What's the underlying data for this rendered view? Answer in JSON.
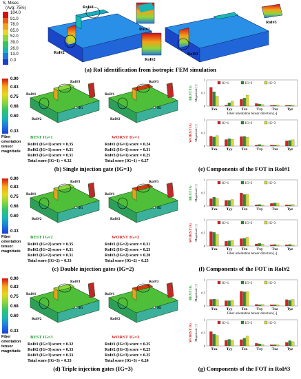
{
  "panel_a": {
    "legend_title": "S, Mises",
    "legend_subtitle": "(Avg: 75%)",
    "legend_values": [
      "104.0",
      "91.0",
      "78.0",
      "65.0",
      "52.0",
      "39.0",
      "26.0",
      "13.0",
      "0.0"
    ],
    "legend_colors": [
      "#d41010",
      "#ef5a10",
      "#f5a21a",
      "#e6d81e",
      "#8fd63a",
      "#33c46a",
      "#19b6b4",
      "#1e7ae0",
      "#1b3fd2"
    ],
    "rois": [
      "RoI#1",
      "RoI#2",
      "RoI#3"
    ],
    "caption": "(a) RoI identification from isotropic FEM simulation"
  },
  "fot_colorbar": {
    "ticks": [
      "0.90",
      "0.83",
      "0.75",
      "0.68",
      "0.60",
      "0.33"
    ],
    "label_lines": [
      "Fiber",
      "orientation",
      "tensor",
      "magnitude"
    ]
  },
  "gate_label": "IG",
  "behind_label_lines": [
    "IG",
    "(behind)"
  ],
  "panels_left": [
    {
      "best_title": "BEST IG=1",
      "worst_title": "WORST IG=1",
      "best_scores": [
        "RoI#1 (IG=1) score = 0.35",
        "RoI#2 (IG=1) score = 0.31",
        "RoI#3 (IG=1) score = 0.31",
        "Total score (IG=1) = 0.32"
      ],
      "worst_scores": [
        "RoI#1 (IG=1) score = 0.24",
        "RoI#2 (IG=1) score = 0.31",
        "RoI#3 (IG=1) score = 0.25",
        "Total score (IG=1) = 0.27"
      ],
      "caption": "(b) Single injection gate (IG=1)"
    },
    {
      "best_title": "BEST IG=2",
      "worst_title": "WORST IG=2",
      "best_scores": [
        "RoI#1 (IG=2) score = 0.35",
        "RoI#2 (IG=2) score = 0.31",
        "RoI#3 (IG=2) score = 0.31",
        "Total score (IG=2) = 0.33"
      ],
      "worst_scores": [
        "RoI#1 (IG=2) score = 0.31",
        "RoI#2 (IG=2) score = 0.23",
        "RoI#3 (IG=2) score = 0.20",
        "Total score (IG=2) = 0.25"
      ],
      "caption": "(c) Double injection gates (IG=2)"
    },
    {
      "best_title": "BEST IG=3",
      "worst_title": "WORST IG=3",
      "best_scores": [
        "RoI#1 (IG=3) score = 0.32",
        "RoI#2 (IG=3) score = 0.33",
        "RoI#3 (IG=3) score = 0.33",
        "Total score (IG=3) = 0.33"
      ],
      "worst_scores": [
        "RoI#1 (IG=3) score = 0.25",
        "RoI#2 (IG=3) score = 0.23",
        "RoI#3 (IG=3) score = 0.25",
        "Total score (IG=3) = 0.24"
      ],
      "caption": "(d) Triple injection gates (IG=3)"
    }
  ],
  "chart_data": [
    {
      "type": "bar",
      "panel": "e",
      "row": "BEST IG",
      "caption": "(e) Components of the FOT in RoI#1",
      "categories": [
        "Txx",
        "Tyy",
        "Tzz",
        "Txy",
        "Txz",
        "Tyz"
      ],
      "ylabel": "Magnitude [-]",
      "xlabel": "Fiber orientation tensor direction [-]",
      "ylim": [
        0,
        1
      ],
      "yticks": [
        "0",
        "0.5",
        "1"
      ],
      "series": [
        {
          "name": "IG=1",
          "values": [
            0.72,
            0.04,
            0.26,
            0.1,
            0.03,
            0.03
          ]
        },
        {
          "name": "IG=2",
          "values": [
            0.55,
            0.13,
            0.31,
            0.08,
            0.04,
            0.04
          ]
        },
        {
          "name": "IG=3",
          "values": [
            0.38,
            0.19,
            0.42,
            0.06,
            0.05,
            0.05
          ]
        }
      ]
    },
    {
      "type": "bar",
      "panel": "e",
      "row": "WORST IG",
      "categories": [
        "Txx",
        "Tyy",
        "Tzz",
        "Txy",
        "Txz",
        "Tyz"
      ],
      "ylabel": "Magnitude [-]",
      "xlabel": "",
      "ylim": [
        0,
        1
      ],
      "yticks": [
        "0",
        "0.5",
        "1"
      ],
      "series": [
        {
          "name": "IG=1",
          "values": [
            0.38,
            0.25,
            0.36,
            0.04,
            0.04,
            0.2
          ]
        },
        {
          "name": "IG=2",
          "values": [
            0.35,
            0.28,
            0.37,
            0.06,
            0.04,
            0.22
          ]
        },
        {
          "name": "IG=3",
          "values": [
            0.4,
            0.26,
            0.34,
            0.05,
            0.05,
            0.24
          ]
        }
      ]
    },
    {
      "type": "bar",
      "panel": "f",
      "row": "BEST IG",
      "caption": "(f) Components of the FOT in RoI#2",
      "categories": [
        "Txx",
        "Tyy",
        "Tzz",
        "Txy",
        "Txz",
        "Tyz"
      ],
      "ylabel": "Magnitude [-]",
      "xlabel": "",
      "ylim": [
        0,
        1
      ],
      "yticks": [
        "0",
        "0.5",
        "1"
      ],
      "series": [
        {
          "name": "IG=1",
          "values": [
            0.28,
            0.22,
            0.5,
            0.05,
            0.1,
            0.05
          ]
        },
        {
          "name": "IG=2",
          "values": [
            0.34,
            0.22,
            0.44,
            0.06,
            0.12,
            0.05
          ]
        },
        {
          "name": "IG=3",
          "values": [
            0.3,
            0.25,
            0.45,
            0.05,
            0.11,
            0.06
          ]
        }
      ]
    },
    {
      "type": "bar",
      "panel": "f",
      "row": "WORST IG",
      "categories": [
        "Txx",
        "Tyy",
        "Tzz",
        "Txy",
        "Txz",
        "Tyz"
      ],
      "ylabel": "Magnitude [-]",
      "xlabel": "Fiber orientation tensor direction [-]",
      "ylim": [
        0,
        1
      ],
      "yticks": [
        "0",
        "0.5",
        "1"
      ],
      "series": [
        {
          "name": "IG=1",
          "values": [
            0.55,
            0.18,
            0.28,
            0.08,
            0.05,
            0.05
          ]
        },
        {
          "name": "IG=2",
          "values": [
            0.52,
            0.2,
            0.3,
            0.1,
            0.06,
            0.06
          ]
        },
        {
          "name": "IG=3",
          "values": [
            0.45,
            0.22,
            0.33,
            0.07,
            0.05,
            0.05
          ]
        }
      ]
    },
    {
      "type": "bar",
      "panel": "g",
      "row": "BEST IG",
      "caption": "(g) Components of the FOT in RoI#3",
      "categories": [
        "Txx",
        "Tyy",
        "Tzz",
        "Txy",
        "Txz",
        "Tyz"
      ],
      "ylabel": "Magnitude [-]",
      "xlabel": "Fiber orientation tensor direction [-]",
      "ylim": [
        0,
        1
      ],
      "yticks": [
        "0",
        "0.5",
        "1"
      ],
      "series": [
        {
          "name": "IG=1",
          "values": [
            0.25,
            0.2,
            0.56,
            0.06,
            0.05,
            0.24
          ]
        },
        {
          "name": "IG=2",
          "values": [
            0.26,
            0.2,
            0.54,
            0.05,
            0.05,
            0.22
          ]
        },
        {
          "name": "IG=3",
          "values": [
            0.24,
            0.22,
            0.55,
            0.06,
            0.05,
            0.25
          ]
        }
      ]
    },
    {
      "type": "bar",
      "panel": "g",
      "row": "WORST IG",
      "categories": [
        "Txx",
        "Tyy",
        "Tzz",
        "Txy",
        "Txz",
        "Tyz"
      ],
      "ylabel": "Magnitude [-]",
      "xlabel": "",
      "ylim": [
        0,
        1
      ],
      "yticks": [
        "0",
        "0.5",
        "1"
      ],
      "series": [
        {
          "name": "IG=1",
          "values": [
            0.55,
            0.22,
            0.24,
            0.1,
            0.05,
            0.14
          ]
        },
        {
          "name": "IG=2",
          "values": [
            0.45,
            0.25,
            0.3,
            0.08,
            0.05,
            0.2
          ]
        },
        {
          "name": "IG=3",
          "values": [
            0.4,
            0.22,
            0.38,
            0.06,
            0.05,
            0.16
          ]
        }
      ]
    }
  ],
  "chart_colors": {
    "IG=1": "#d62020",
    "IG=2": "#2f8a2f",
    "IG=3": "#d8d83a"
  }
}
